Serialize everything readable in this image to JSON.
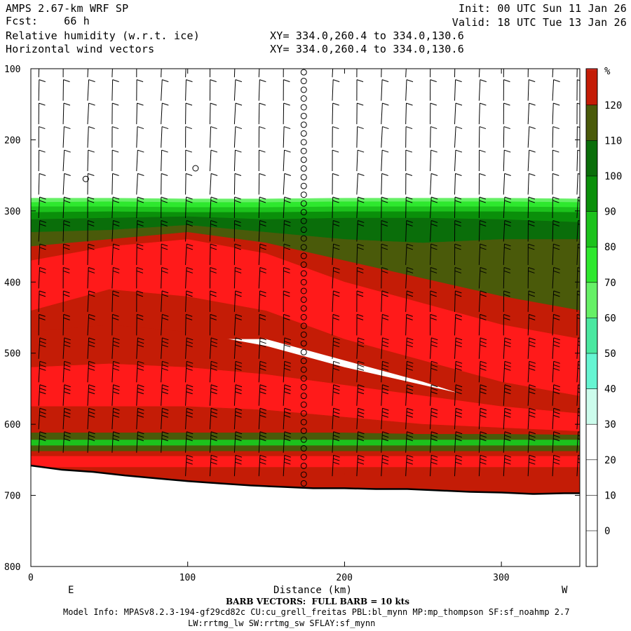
{
  "header": {
    "model": "AMPS 2.67-km WRF SP",
    "fcst_label": "Fcst:",
    "fcst_value": "66 h",
    "field1": "Relative humidity (w.r.t. ice)",
    "field2": "Horizontal wind vectors",
    "init": "Init: 00 UTC Sun 11 Jan 26",
    "valid": "Valid: 18 UTC Tue 13 Jan 26",
    "xy1": "XY= 334.0,260.4 to 334.0,130.6",
    "xy2": "XY= 334.0,260.4 to 334.0,130.6"
  },
  "footer": {
    "barb_note": "BARB VECTORS:  FULL BARB = 10 kts",
    "model_info": "Model Info: MPASv8.2.3-194-gf29cd82c CU:cu_grell_freitas PBL:bl_mynn MP:mp_thompson SF:sf_noahmp 2.7",
    "model_info2": "LW:rrtmg_lw SW:rrtmg_sw SFLAY:sf_mynn"
  },
  "colors": {
    "background": "#ffffff",
    "terrain_line": "#000000"
  },
  "chart_data": {
    "type": "heatmap",
    "xlabel": "Distance (km)",
    "ylabel": "",
    "xlim": [
      0,
      350
    ],
    "ylim": [
      800,
      100
    ],
    "x_ticks": [
      0,
      100,
      200,
      300
    ],
    "y_ticks": [
      100,
      200,
      300,
      400,
      500,
      600,
      700,
      800
    ],
    "x_end_labels": {
      "left": "E",
      "right": "W"
    },
    "colorbar": {
      "unit": "%",
      "ticks": [
        0,
        10,
        20,
        30,
        40,
        50,
        60,
        70,
        80,
        90,
        100,
        110,
        120
      ],
      "bins": [
        {
          "min": 30,
          "max": 40,
          "color": "#ccfcec"
        },
        {
          "min": 40,
          "max": 50,
          "color": "#66f5d2"
        },
        {
          "min": 50,
          "max": 60,
          "color": "#4ae8a0"
        },
        {
          "min": 60,
          "max": 70,
          "color": "#66f066"
        },
        {
          "min": 70,
          "max": 80,
          "color": "#2ee82e"
        },
        {
          "min": 80,
          "max": 90,
          "color": "#1cc21c"
        },
        {
          "min": 90,
          "max": 100,
          "color": "#0a8f0a"
        },
        {
          "min": 100,
          "max": 110,
          "color": "#0a6e0a"
        },
        {
          "min": 110,
          "max": 120,
          "color": "#4a5a0a"
        },
        {
          "min": 120,
          "max": 130,
          "color": "#c41c06"
        },
        {
          "min": 130,
          "max": 140,
          "color": "#ff1a1a"
        }
      ]
    },
    "terrain_profile": {
      "x_km": [
        0,
        20,
        40,
        60,
        80,
        100,
        120,
        140,
        160,
        180,
        200,
        220,
        240,
        260,
        280,
        300,
        320,
        340,
        350
      ],
      "pressure_hpa": [
        658,
        664,
        667,
        672,
        676,
        680,
        683,
        686,
        688,
        690,
        690,
        691,
        691,
        693,
        695,
        696,
        698,
        697,
        697
      ]
    },
    "rh_layers": [
      {
        "bin": 3,
        "x": [
          0,
          50,
          100,
          150,
          200,
          250,
          300,
          350
        ],
        "top": [
          282,
          282,
          283,
          283,
          282,
          282,
          282,
          283
        ],
        "bottom": [
          297,
          297,
          297,
          296,
          296,
          296,
          296,
          296
        ]
      },
      {
        "bin": 4,
        "x": [
          0,
          50,
          100,
          150,
          200,
          250,
          300,
          350
        ],
        "top": [
          288,
          287,
          288,
          288,
          287,
          287,
          287,
          288
        ],
        "bottom": [
          305,
          303,
          303,
          303,
          302,
          302,
          303,
          303
        ]
      },
      {
        "bin": 5,
        "x": [
          0,
          50,
          100,
          150,
          200,
          250,
          300,
          350
        ],
        "top": [
          294,
          294,
          295,
          295,
          294,
          294,
          294,
          295
        ],
        "bottom": [
          460,
          440,
          420,
          420,
          450,
          480,
          520,
          550
        ]
      },
      {
        "bin": 6,
        "x": [
          0,
          50,
          100,
          150,
          200,
          250,
          300,
          350
        ],
        "top": [
          302,
          301,
          302,
          302,
          301,
          301,
          301,
          302
        ],
        "bottom": [
          470,
          450,
          430,
          430,
          460,
          490,
          530,
          560
        ]
      },
      {
        "bin": 7,
        "x": [
          0,
          50,
          100,
          150,
          200,
          250,
          300,
          350
        ],
        "top": [
          312,
          310,
          308,
          312,
          310,
          310,
          312,
          316
        ],
        "bottom": [
          480,
          460,
          440,
          440,
          470,
          500,
          540,
          570
        ]
      },
      {
        "bin": 8,
        "x": [
          0,
          50,
          100,
          150,
          200,
          250,
          300,
          350
        ],
        "top": [
          330,
          327,
          320,
          330,
          340,
          345,
          340,
          340
        ],
        "bottom": [
          500,
          480,
          460,
          460,
          490,
          520,
          560,
          590
        ]
      },
      {
        "bin": 9,
        "x": [
          0,
          50,
          100,
          150,
          200,
          250,
          300,
          350
        ],
        "top": [
          350,
          340,
          330,
          345,
          370,
          395,
          420,
          440
        ],
        "bottom": [
          520,
          500,
          480,
          480,
          510,
          540,
          575,
          600
        ]
      },
      {
        "bin": 10,
        "x": [
          0,
          50,
          100,
          150,
          200,
          250,
          300,
          350
        ],
        "top": [
          370,
          350,
          340,
          360,
          400,
          430,
          460,
          480
        ],
        "bottom": [
          440,
          410,
          420,
          440,
          480,
          510,
          540,
          560
        ]
      },
      {
        "bin": 9,
        "x": [
          0,
          50,
          100,
          150,
          200,
          250,
          300,
          350
        ],
        "top": [
          470,
          460,
          470,
          490,
          520,
          545,
          570,
          590
        ],
        "bottom": [
          545,
          540,
          545,
          555,
          575,
          590,
          605,
          615
        ]
      },
      {
        "bin": 10,
        "x": [
          0,
          50,
          100,
          150,
          200,
          250,
          300,
          350
        ],
        "top": [
          520,
          515,
          520,
          530,
          545,
          560,
          575,
          585
        ],
        "bottom": [
          580,
          575,
          575,
          580,
          590,
          600,
          610,
          620
        ]
      },
      {
        "bin": 9,
        "x": [
          0,
          50,
          100,
          150,
          200,
          250,
          300,
          350
        ],
        "top": [
          575,
          575,
          575,
          580,
          590,
          600,
          605,
          610
        ],
        "bottom": [
          615,
          615,
          615,
          615,
          615,
          618,
          618,
          620
        ]
      },
      {
        "bin": 8,
        "x": [
          0,
          50,
          100,
          150,
          200,
          250,
          300,
          350
        ],
        "top": [
          612,
          612,
          612,
          612,
          612,
          614,
          614,
          615
        ],
        "bottom": [
          625,
          625,
          625,
          625,
          625,
          625,
          625,
          625
        ]
      },
      {
        "bin": 5,
        "x": [
          0,
          50,
          100,
          150,
          200,
          250,
          300,
          350
        ],
        "top": [
          622,
          622,
          622,
          622,
          622,
          622,
          622,
          622
        ],
        "bottom": [
          632,
          632,
          632,
          632,
          632,
          632,
          632,
          632
        ]
      },
      {
        "bin": 8,
        "x": [
          0,
          50,
          100,
          150,
          200,
          250,
          300,
          350
        ],
        "top": [
          630,
          630,
          630,
          630,
          630,
          630,
          630,
          630
        ],
        "bottom": [
          640,
          640,
          640,
          640,
          640,
          640,
          640,
          640
        ]
      },
      {
        "bin": 9,
        "x": [
          0,
          50,
          100,
          150,
          200,
          250,
          300,
          350
        ],
        "top": [
          638,
          638,
          638,
          638,
          638,
          638,
          638,
          638
        ],
        "bottom": [
          700,
          700,
          700,
          700,
          700,
          700,
          700,
          700
        ]
      },
      {
        "bin": 10,
        "x": [
          0,
          50,
          100,
          150,
          200,
          250,
          300,
          350
        ],
        "top": [
          645,
          645,
          645,
          645,
          645,
          645,
          645,
          645
        ],
        "bottom": [
          660,
          660,
          660,
          660,
          660,
          660,
          660,
          660
        ]
      },
      {
        "bin": 9,
        "x": [
          0,
          50,
          100,
          150,
          200,
          250,
          300,
          350
        ],
        "top": [
          670,
          670,
          670,
          670,
          670,
          670,
          670,
          670
        ],
        "bottom": [
          700,
          700,
          700,
          700,
          700,
          700,
          700,
          700
        ]
      }
    ],
    "special_markers": {
      "calm_column_x_km": 174,
      "calm_column_top_hpa": 100,
      "calm_column_bottom_hpa": 685,
      "isolated_calm": [
        {
          "x": 35,
          "p": 255
        },
        {
          "x": 105,
          "p": 240
        }
      ]
    }
  }
}
